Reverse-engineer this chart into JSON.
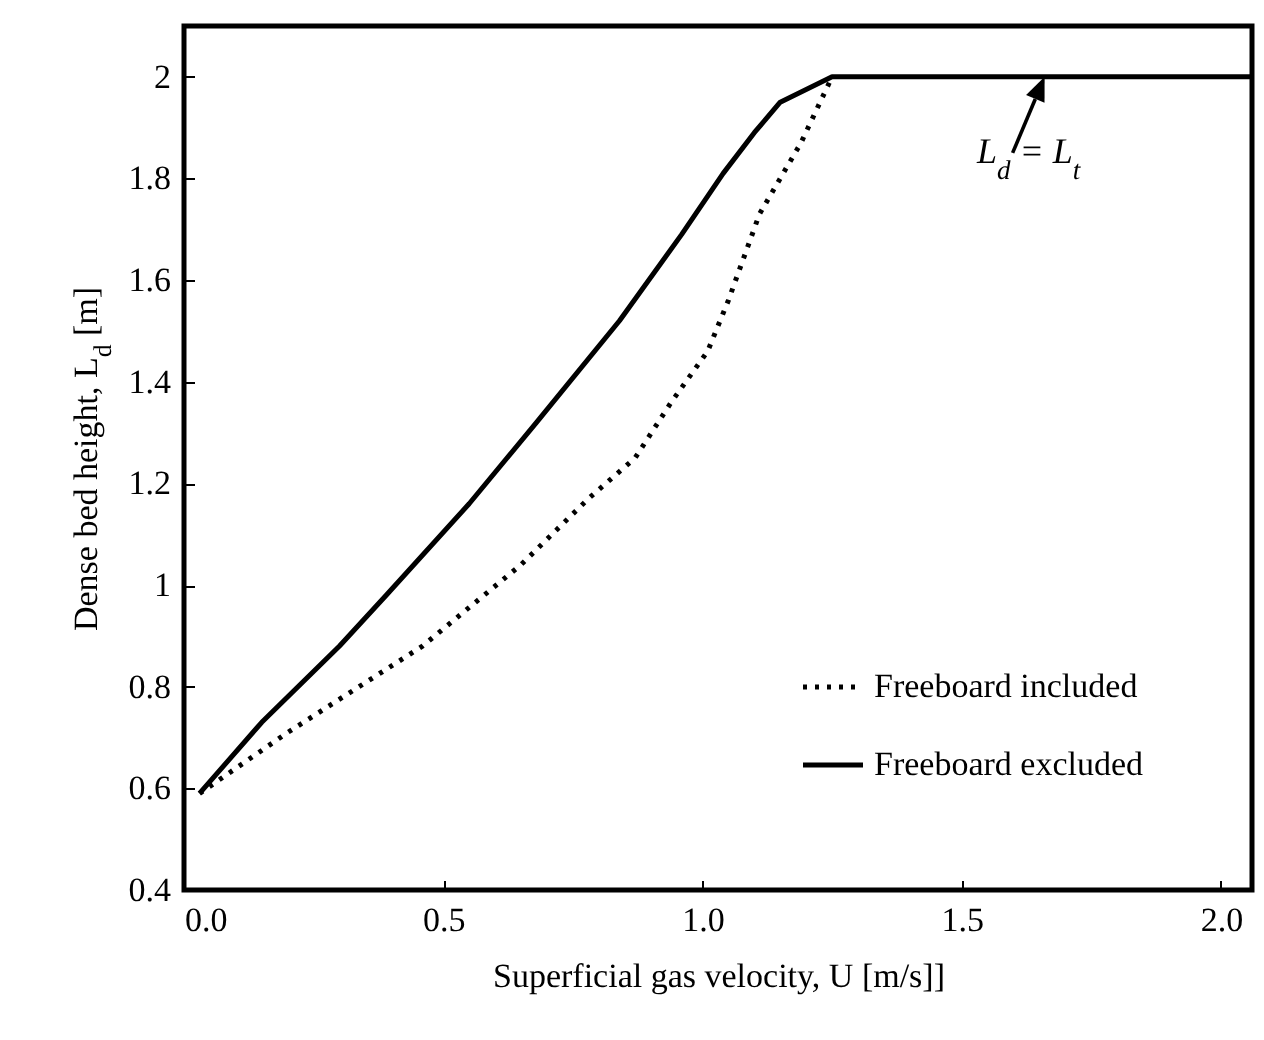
{
  "chart_data": {
    "type": "line",
    "xlabel": "Superficial gas velocity, U [m/s]]",
    "ylabel": "Dense bed height, L$_{d}$ [m]",
    "xlim": [
      0,
      2.06
    ],
    "ylim": [
      0.4,
      2.1
    ],
    "xticks": [
      {
        "value": 0,
        "label": "0.0"
      },
      {
        "value": 0.5,
        "label": "0.5"
      },
      {
        "value": 1,
        "label": "1.0"
      },
      {
        "value": 1.5,
        "label": "1.5"
      },
      {
        "value": 2,
        "label": "2.0"
      }
    ],
    "yticks": [
      0.4,
      0.6,
      0.8,
      {
        "value": 1,
        "label": "1"
      },
      1.2,
      1.4,
      1.6,
      1.8,
      {
        "value": 2,
        "label": "2"
      }
    ],
    "grid": false,
    "legend": "bottom right",
    "annotations": [
      {
        "text": "L$_{d}$ = L$_{t}$",
        "x": 1.66,
        "y": 2.0
      }
    ],
    "series": [
      {
        "name": "Freeboard included",
        "color": "#000000",
        "line_style": "dotted",
        "x": [
          0.03,
          0.2,
          0.46,
          0.65,
          0.78,
          0.87,
          0.94,
          1.01,
          1.05,
          1.11,
          1.19,
          1.25
        ],
        "values": [
          0.59,
          0.71,
          0.88,
          1.04,
          1.17,
          1.25,
          1.36,
          1.46,
          1.56,
          1.73,
          1.87,
          2.0
        ]
      },
      {
        "name": "Freeboard excluded",
        "color": "#000000",
        "line_style": "solid",
        "x": [
          0.03,
          0.15,
          0.3,
          0.39,
          0.55,
          0.68,
          0.84,
          0.96,
          1.04,
          1.1,
          1.15,
          1.25,
          1.6,
          2.06
        ],
        "values": [
          0.59,
          0.73,
          0.88,
          0.98,
          1.16,
          1.32,
          1.52,
          1.69,
          1.81,
          1.89,
          1.95,
          2.0,
          2.0,
          2.0
        ]
      }
    ]
  }
}
